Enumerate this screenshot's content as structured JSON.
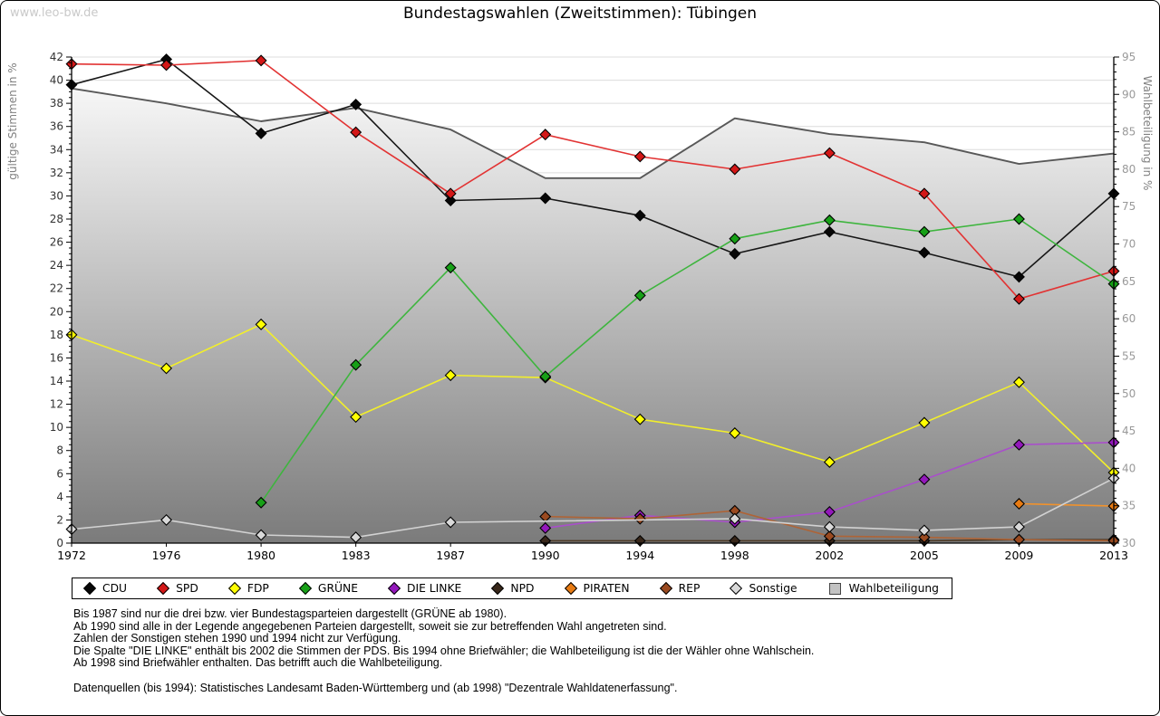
{
  "watermark": "www.leo-bw.de",
  "title": "Bundestagswahlen (Zweitstimmen): Tübingen",
  "chart_data": {
    "type": "line",
    "title": "Bundestagswahlen (Zweitstimmen): Tübingen",
    "categories": [
      "1972",
      "1976",
      "1980",
      "1983",
      "1987",
      "1990",
      "1994",
      "1998",
      "2002",
      "2005",
      "2009",
      "2013"
    ],
    "left_axis": {
      "label": "gültige Stimmen in %",
      "min": 0,
      "max": 42,
      "tick_step": 2,
      "minor_step": 0.5
    },
    "right_axis": {
      "label": "Wahlbeteiligung in %",
      "min": 30,
      "max": 95,
      "tick_step": 5,
      "minor_step": 1
    },
    "grid": {
      "horizontal_every_left_units": 2,
      "color": "#dcdcdc"
    },
    "legend_position": "bottom",
    "series": [
      {
        "name": "CDU",
        "axis": "left",
        "kind": "line",
        "line_color": "#161616",
        "marker_color": "#070707",
        "values": [
          39.6,
          41.8,
          35.4,
          37.9,
          29.6,
          29.8,
          28.3,
          25.0,
          26.9,
          25.1,
          23.0,
          30.2
        ]
      },
      {
        "name": "SPD",
        "axis": "left",
        "kind": "line",
        "line_color": "#e23333",
        "marker_color": "#d31717",
        "values": [
          41.4,
          41.3,
          41.7,
          35.5,
          30.2,
          35.3,
          33.4,
          32.3,
          33.7,
          30.2,
          21.1,
          23.5
        ]
      },
      {
        "name": "FDP",
        "axis": "left",
        "kind": "line",
        "line_color": "#f2ef2a",
        "marker_color": "#ffff00",
        "values": [
          18.0,
          15.1,
          18.9,
          10.9,
          14.5,
          14.3,
          10.7,
          9.5,
          7.0,
          10.4,
          13.9,
          6.1
        ]
      },
      {
        "name": "GRÜNE",
        "axis": "left",
        "kind": "line",
        "line_color": "#3eb53e",
        "marker_color": "#17a017",
        "values": [
          null,
          null,
          3.5,
          15.4,
          23.8,
          14.4,
          21.4,
          26.3,
          27.9,
          26.9,
          28.0,
          22.4
        ]
      },
      {
        "name": "DIE LINKE",
        "axis": "left",
        "kind": "line",
        "line_color": "#a94fcb",
        "marker_color": "#9318bb",
        "values": [
          null,
          null,
          null,
          null,
          null,
          1.3,
          2.4,
          1.8,
          2.7,
          5.5,
          8.5,
          8.7
        ]
      },
      {
        "name": "NPD",
        "axis": "left",
        "kind": "line",
        "line_color": "#4d3a26",
        "marker_color": "#38271a",
        "values": [
          null,
          null,
          null,
          null,
          null,
          0.2,
          0.2,
          0.2,
          0.2,
          0.2,
          0.3,
          0.3
        ]
      },
      {
        "name": "PIRATEN",
        "axis": "left",
        "kind": "line",
        "line_color": "#f0922d",
        "marker_color": "#e87b12",
        "values": [
          null,
          null,
          null,
          null,
          null,
          null,
          null,
          null,
          null,
          null,
          3.4,
          3.2
        ]
      },
      {
        "name": "REP",
        "axis": "left",
        "kind": "line",
        "line_color": "#ae6437",
        "marker_color": "#9a4a20",
        "values": [
          null,
          null,
          null,
          null,
          null,
          2.3,
          2.1,
          2.8,
          0.6,
          0.5,
          0.3,
          0.2
        ]
      },
      {
        "name": "Sonstige",
        "axis": "left",
        "kind": "line",
        "line_color": "#d2d2d2",
        "marker_color": "#d9d9d9",
        "values": [
          1.2,
          2.0,
          0.7,
          0.5,
          1.8,
          null,
          null,
          2.1,
          1.4,
          1.1,
          1.4,
          5.6
        ]
      },
      {
        "name": "Wahlbeteiligung",
        "axis": "right",
        "kind": "area",
        "line_color": "#585858",
        "area_gradient_top": "#ffffff",
        "area_gradient_bottom": "#7b7b7b",
        "values": [
          90.8,
          88.8,
          86.4,
          88.2,
          85.3,
          78.8,
          78.8,
          86.8,
          84.7,
          83.6,
          80.7,
          82.1
        ]
      }
    ]
  },
  "footnotes": [
    "Bis 1987 sind nur die drei bzw. vier Bundestagsparteien dargestellt (GRÜNE ab 1980).",
    "Ab 1990 sind alle in der Legende angegebenen Parteien dargestellt, soweit sie zur betreffenden Wahl angetreten sind.",
    "Zahlen der Sonstigen stehen 1990 und 1994 nicht zur Verfügung.",
    "Die Spalte \"DIE LINKE\" enthält bis 2002 die Stimmen der PDS. Bis 1994 ohne Briefwähler; die Wahlbeteiligung ist die der Wähler ohne Wahlschein.",
    "Ab 1998 sind Briefwähler enthalten. Das betrifft auch die Wahlbeteiligung."
  ],
  "source_line": "Datenquellen (bis 1994): Statistisches Landesamt Baden-Württemberg und (ab 1998) \"Dezentrale Wahldatenerfassung\"."
}
